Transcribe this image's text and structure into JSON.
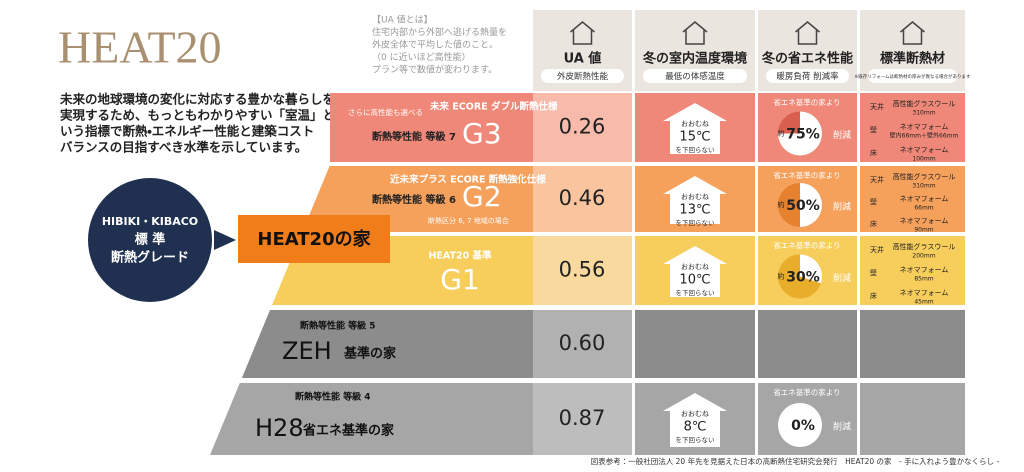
{
  "header": {
    "title": "HEAT20",
    "description": [
      "未来の地球環境の変化に対応する豊かな暮らしを",
      "実現するため、もっともわかりやすい「室温」と",
      "いう指標で断熱・エネルギー性能と建築コスト",
      "バランスの目指すべき水準を示しています。"
    ]
  },
  "badge": {
    "lines": [
      "HIBIKI・KIBACO",
      "標 準",
      "断熱グレード"
    ]
  },
  "arrow_label": "HEAT20の家",
  "ua_note": [
    "【UA 値とは】",
    "住宅内部から外部へ逃げる熱量を",
    "外皮全体で平均した値のこと。",
    "（0 に近いほど高性能）",
    "プラン等で数値が変わります。"
  ],
  "columns": [
    {
      "title": "UA 値",
      "sub": "外皮断熱性能"
    },
    {
      "title": "冬の室内温度環境",
      "sub": "最低の体感温度"
    },
    {
      "title": "冬の省エネ性能",
      "sub": "暖房負荷 削減率"
    },
    {
      "title": "標準断熱材",
      "sub": "※既存リフォームは断熱材の厚みが異なる場合があります"
    }
  ],
  "rows": [
    {
      "prefix": "さらに高性能も選べる",
      "spec": "未来 ECORE ダブル断熱仕様",
      "grade": "断熱等性能 等級 7",
      "name": "G3",
      "suffix": null,
      "note": null,
      "ua": "0.26",
      "temp": {
        "pre": "おおむね",
        "value": "15℃",
        "post": "を下回らない"
      },
      "energy": {
        "label": "省エネ基準の家より",
        "approx": "約",
        "percent": 75,
        "percent_label": "75%",
        "post": "削減"
      },
      "insulation": [
        {
          "part": "天井",
          "material": "高性能グラスウール",
          "thickness": "310mm"
        },
        {
          "part": "壁",
          "material": "ネオマフォーム",
          "thickness": "壁内66mm＋壁外66mm"
        },
        {
          "part": "床",
          "material": "ネオマフォーム",
          "thickness": "100mm"
        }
      ]
    },
    {
      "prefix": null,
      "spec": "近未来プラス ECORE 断熱強化仕様",
      "grade": "断熱等性能 等級 6",
      "name": "G2",
      "suffix": null,
      "note": "断熱区分 6, 7 地域の場合",
      "ua": "0.46",
      "temp": {
        "pre": "おおむね",
        "value": "13℃",
        "post": "を下回らない"
      },
      "energy": {
        "label": "省エネ基準の家より",
        "approx": "約",
        "percent": 50,
        "percent_label": "50%",
        "post": "削減"
      },
      "insulation": [
        {
          "part": "天井",
          "material": "高性能グラスウール",
          "thickness": "310mm"
        },
        {
          "part": "壁",
          "material": "ネオマフォーム",
          "thickness": "66mm"
        },
        {
          "part": "床",
          "material": "ネオマフォーム",
          "thickness": "90mm"
        }
      ]
    },
    {
      "prefix": null,
      "spec": "HEAT20 基準",
      "grade": null,
      "name": "G1",
      "suffix": null,
      "note": null,
      "ua": "0.56",
      "temp": {
        "pre": "おおむね",
        "value": "10℃",
        "post": "を下回らない"
      },
      "energy": {
        "label": "省エネ基準の家より",
        "approx": "約",
        "percent": 30,
        "percent_label": "30%",
        "post": "削減"
      },
      "insulation": [
        {
          "part": "天井",
          "material": "高性能グラスウール",
          "thickness": "200mm"
        },
        {
          "part": "壁",
          "material": "ネオマフォーム",
          "thickness": "85mm"
        },
        {
          "part": "床",
          "material": "ネオマフォーム",
          "thickness": "45mm"
        }
      ]
    },
    {
      "prefix": null,
      "spec": null,
      "grade": "断熱等性能 等級 5",
      "name": "ZEH",
      "suffix": "基準の家",
      "note": null,
      "ua": "0.60",
      "temp": null,
      "energy": null,
      "insulation": null
    },
    {
      "prefix": null,
      "spec": null,
      "grade": "断熱等性能 等級 4",
      "name": "H28",
      "suffix": "省エネ基準の家",
      "note": null,
      "ua": "0.87",
      "temp": {
        "pre": "おおむね",
        "value": "8℃",
        "post": "を下回らない"
      },
      "energy": {
        "label": "省エネ基準の家より",
        "approx": null,
        "percent": 0,
        "percent_label": "0%",
        "post": "削減"
      },
      "insulation": null
    }
  ],
  "footer": "図表参考：一般社団法人 20 年先を見据えた日本の高断熱住宅研究会発行　HEAT20 の家　- 手に入れよう豊かなくらし -"
}
